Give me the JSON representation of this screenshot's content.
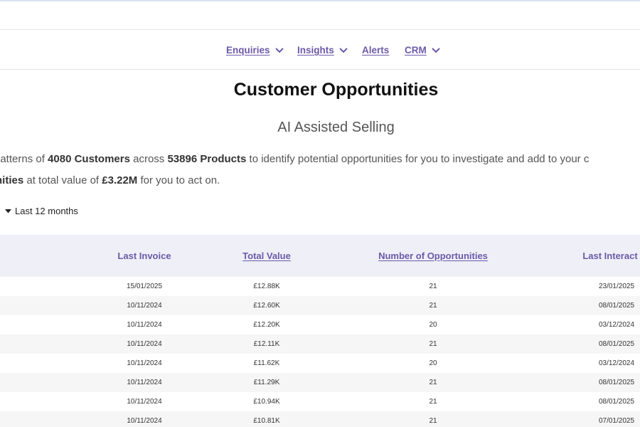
{
  "nav": {
    "items": [
      {
        "label": "Enquiries",
        "dropdown": true
      },
      {
        "label": "Insights",
        "dropdown": true
      },
      {
        "label": "Alerts",
        "dropdown": false
      },
      {
        "label": "CRM",
        "dropdown": true
      }
    ]
  },
  "header": {
    "title": "Customer Opportunities",
    "subtitle": "AI Assisted Selling"
  },
  "description": {
    "line1_prefix": "patterns of ",
    "customers": "4080 Customers",
    "line1_mid": " across ",
    "products": "53896 Products",
    "line1_suffix": " to identify potential opportunities for you to investigate and add to your c",
    "line2_bold": "nities",
    "line2_mid": " at total value of ",
    "total_value": "£3.22M",
    "line2_suffix": " for you to act on."
  },
  "period": {
    "label": "Last 12 months"
  },
  "table": {
    "columns": [
      "Last Invoice",
      "Total Value",
      "Number of Opportunities",
      "Last Interact"
    ],
    "rows": [
      {
        "last_invoice": "15/01/2025",
        "total_value": "£12.88K",
        "opportunities": "21",
        "last_interaction": "23/01/2025"
      },
      {
        "last_invoice": "10/11/2024",
        "total_value": "£12.60K",
        "opportunities": "21",
        "last_interaction": "08/01/2025"
      },
      {
        "last_invoice": "10/11/2024",
        "total_value": "£12.20K",
        "opportunities": "20",
        "last_interaction": "03/12/2024"
      },
      {
        "last_invoice": "10/11/2024",
        "total_value": "£12.11K",
        "opportunities": "21",
        "last_interaction": "08/01/2025"
      },
      {
        "last_invoice": "10/11/2024",
        "total_value": "£11.62K",
        "opportunities": "20",
        "last_interaction": "03/12/2024"
      },
      {
        "last_invoice": "10/11/2024",
        "total_value": "£11.29K",
        "opportunities": "21",
        "last_interaction": "08/01/2025"
      },
      {
        "last_invoice": "10/11/2024",
        "total_value": "£10.94K",
        "opportunities": "21",
        "last_interaction": "08/01/2025"
      },
      {
        "last_invoice": "10/11/2024",
        "total_value": "£10.81K",
        "opportunities": "21",
        "last_interaction": "07/01/2025"
      }
    ]
  },
  "colors": {
    "accent": "#6c5aa8",
    "header_bg": "#eeeff7",
    "row_alt_bg": "#f6f6f6"
  },
  "icons": {
    "nav_dropdown": "chevron-down-icon",
    "period_toggle": "caret-down-icon"
  }
}
